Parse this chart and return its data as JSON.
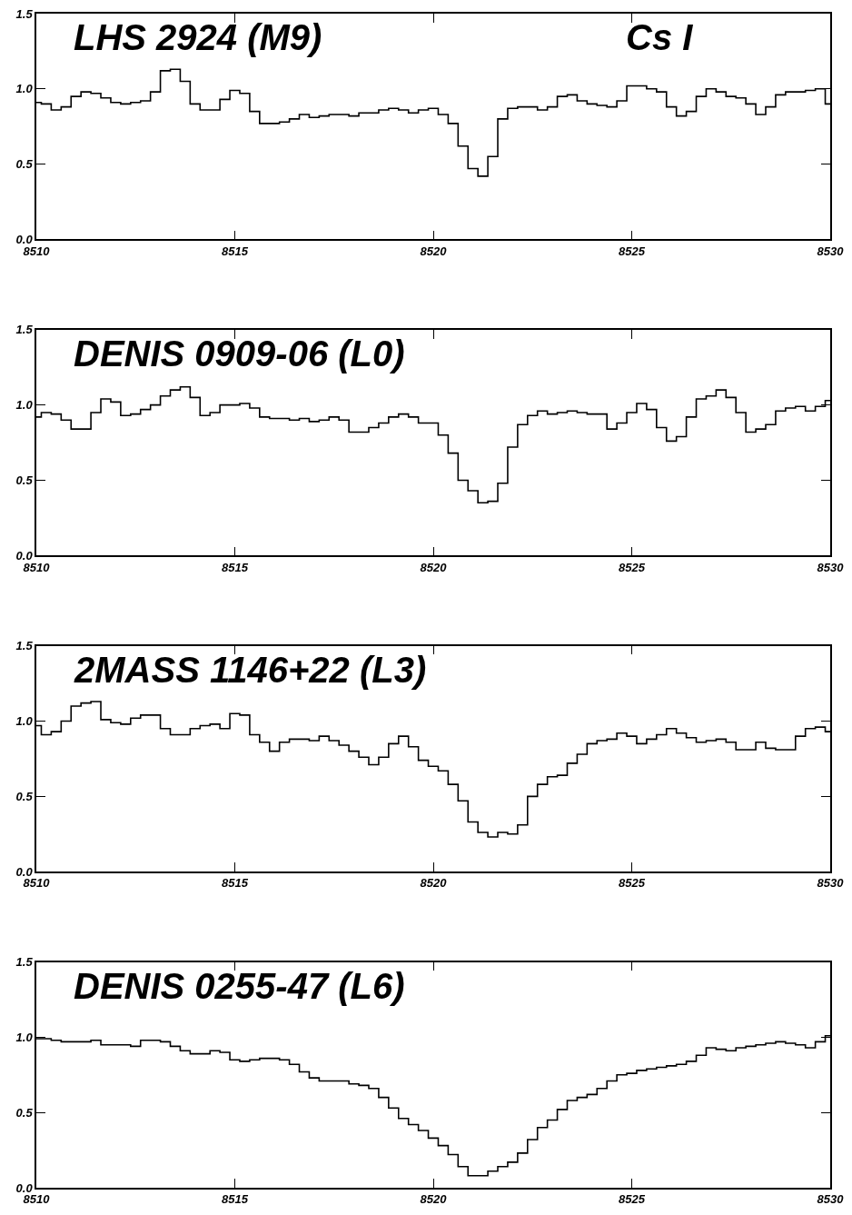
{
  "chart_data": [
    {
      "type": "step",
      "title": "LHS 2924 (M9)",
      "annotations": [
        "Cs I"
      ],
      "x": [
        8510,
        8510.25,
        8510.5,
        8510.75,
        8511,
        8511.25,
        8511.5,
        8511.75,
        8512,
        8512.25,
        8512.5,
        8512.75,
        8513,
        8513.25,
        8513.5,
        8513.75,
        8514,
        8514.25,
        8514.5,
        8514.75,
        8515,
        8515.25,
        8515.5,
        8515.75,
        8516,
        8516.25,
        8516.5,
        8516.75,
        8517,
        8517.25,
        8517.5,
        8517.75,
        8518,
        8518.25,
        8518.5,
        8518.75,
        8519,
        8519.25,
        8519.5,
        8519.75,
        8520,
        8520.25,
        8520.5,
        8520.75,
        8521,
        8521.25,
        8521.5,
        8521.75,
        8522,
        8522.25,
        8522.5,
        8522.75,
        8523,
        8523.25,
        8523.5,
        8523.75,
        8524,
        8524.25,
        8524.5,
        8524.75,
        8525,
        8525.25,
        8525.5,
        8525.75,
        8526,
        8526.25,
        8526.5,
        8526.75,
        8527,
        8527.25,
        8527.5,
        8527.75,
        8528,
        8528.25,
        8528.5,
        8528.75,
        8529,
        8529.25,
        8529.5,
        8529.75,
        8530
      ],
      "series": [
        {
          "color": "#000000",
          "values": [
            0.91,
            0.9,
            0.86,
            0.88,
            0.95,
            0.98,
            0.97,
            0.94,
            0.91,
            0.9,
            0.91,
            0.92,
            0.98,
            1.12,
            1.13,
            1.05,
            0.9,
            0.86,
            0.86,
            0.93,
            0.99,
            0.97,
            0.85,
            0.77,
            0.77,
            0.78,
            0.8,
            0.83,
            0.81,
            0.82,
            0.83,
            0.83,
            0.82,
            0.84,
            0.84,
            0.86,
            0.87,
            0.86,
            0.84,
            0.86,
            0.87,
            0.83,
            0.77,
            0.62,
            0.47,
            0.42,
            0.55,
            0.8,
            0.87,
            0.88,
            0.88,
            0.86,
            0.88,
            0.95,
            0.96,
            0.92,
            0.9,
            0.89,
            0.88,
            0.92,
            1.02,
            1.02,
            1.0,
            0.98,
            0.88,
            0.82,
            0.85,
            0.95,
            1.0,
            0.98,
            0.95,
            0.94,
            0.9,
            0.83,
            0.88,
            0.96,
            0.98,
            0.98,
            0.99,
            1.0,
            0.9
          ]
        }
      ],
      "xlim": [
        8510,
        8530
      ],
      "ylim": [
        0,
        1.5
      ],
      "xticks": [
        8510,
        8515,
        8520,
        8525,
        8530
      ],
      "yticks": [
        {
          "value": 0,
          "label": "0.0"
        },
        {
          "value": 0.5,
          "label": "0.5"
        },
        {
          "value": 1,
          "label": "1.0"
        },
        {
          "value": 1.5,
          "label": "1.5"
        }
      ],
      "tick_labels": "xy"
    },
    {
      "type": "step",
      "title": "DENIS 0909-06 (L0)",
      "x": [
        8510,
        8510.25,
        8510.5,
        8510.75,
        8511,
        8511.25,
        8511.5,
        8511.75,
        8512,
        8512.25,
        8512.5,
        8512.75,
        8513,
        8513.25,
        8513.5,
        8513.75,
        8514,
        8514.25,
        8514.5,
        8514.75,
        8515,
        8515.25,
        8515.5,
        8515.75,
        8516,
        8516.25,
        8516.5,
        8516.75,
        8517,
        8517.25,
        8517.5,
        8517.75,
        8518,
        8518.25,
        8518.5,
        8518.75,
        8519,
        8519.25,
        8519.5,
        8519.75,
        8520,
        8520.25,
        8520.5,
        8520.75,
        8521,
        8521.25,
        8521.5,
        8521.75,
        8522,
        8522.25,
        8522.5,
        8522.75,
        8523,
        8523.25,
        8523.5,
        8523.75,
        8524,
        8524.25,
        8524.5,
        8524.75,
        8525,
        8525.25,
        8525.5,
        8525.75,
        8526,
        8526.25,
        8526.5,
        8526.75,
        8527,
        8527.25,
        8527.5,
        8527.75,
        8528,
        8528.25,
        8528.5,
        8528.75,
        8529,
        8529.25,
        8529.5,
        8529.75,
        8530
      ],
      "series": [
        {
          "color": "#000000",
          "values": [
            0.92,
            0.95,
            0.94,
            0.9,
            0.84,
            0.84,
            0.95,
            1.04,
            1.02,
            0.93,
            0.94,
            0.97,
            1.0,
            1.06,
            1.1,
            1.12,
            1.05,
            0.93,
            0.95,
            1.0,
            1.0,
            1.01,
            0.98,
            0.92,
            0.91,
            0.91,
            0.9,
            0.91,
            0.89,
            0.9,
            0.92,
            0.9,
            0.82,
            0.82,
            0.85,
            0.88,
            0.92,
            0.94,
            0.92,
            0.88,
            0.88,
            0.8,
            0.68,
            0.5,
            0.43,
            0.35,
            0.36,
            0.48,
            0.72,
            0.87,
            0.93,
            0.96,
            0.94,
            0.95,
            0.96,
            0.95,
            0.94,
            0.94,
            0.84,
            0.88,
            0.95,
            1.01,
            0.97,
            0.85,
            0.76,
            0.79,
            0.92,
            1.04,
            1.06,
            1.1,
            1.05,
            0.95,
            0.82,
            0.84,
            0.87,
            0.96,
            0.98,
            0.99,
            0.96,
            0.99,
            1.03
          ]
        }
      ],
      "xlim": [
        8510,
        8530
      ],
      "ylim": [
        0,
        1.5
      ],
      "xticks": [
        8510,
        8515,
        8520,
        8525,
        8530
      ],
      "yticks": [
        {
          "value": 0,
          "label": "0.0"
        },
        {
          "value": 0.5,
          "label": "0.5"
        },
        {
          "value": 1,
          "label": "1.0"
        },
        {
          "value": 1.5,
          "label": "1.5"
        }
      ],
      "tick_labels": "xy"
    },
    {
      "type": "step",
      "title": "2MASS 1146+22 (L3)",
      "x": [
        8510,
        8510.25,
        8510.5,
        8510.75,
        8511,
        8511.25,
        8511.5,
        8511.75,
        8512,
        8512.25,
        8512.5,
        8512.75,
        8513,
        8513.25,
        8513.5,
        8513.75,
        8514,
        8514.25,
        8514.5,
        8514.75,
        8515,
        8515.25,
        8515.5,
        8515.75,
        8516,
        8516.25,
        8516.5,
        8516.75,
        8517,
        8517.25,
        8517.5,
        8517.75,
        8518,
        8518.25,
        8518.5,
        8518.75,
        8519,
        8519.25,
        8519.5,
        8519.75,
        8520,
        8520.25,
        8520.5,
        8520.75,
        8521,
        8521.25,
        8521.5,
        8521.75,
        8522,
        8522.25,
        8522.5,
        8522.75,
        8523,
        8523.25,
        8523.5,
        8523.75,
        8524,
        8524.25,
        8524.5,
        8524.75,
        8525,
        8525.25,
        8525.5,
        8525.75,
        8526,
        8526.25,
        8526.5,
        8526.75,
        8527,
        8527.25,
        8527.5,
        8527.75,
        8528,
        8528.25,
        8528.5,
        8528.75,
        8529,
        8529.25,
        8529.5,
        8529.75,
        8530
      ],
      "series": [
        {
          "color": "#000000",
          "values": [
            0.97,
            0.91,
            0.93,
            1.0,
            1.1,
            1.12,
            1.13,
            1.01,
            0.99,
            0.98,
            1.02,
            1.04,
            1.04,
            0.95,
            0.91,
            0.91,
            0.95,
            0.97,
            0.98,
            0.95,
            1.05,
            1.04,
            0.91,
            0.86,
            0.8,
            0.86,
            0.88,
            0.88,
            0.87,
            0.9,
            0.87,
            0.84,
            0.8,
            0.76,
            0.71,
            0.76,
            0.85,
            0.9,
            0.83,
            0.74,
            0.7,
            0.67,
            0.58,
            0.47,
            0.33,
            0.26,
            0.23,
            0.26,
            0.25,
            0.31,
            0.5,
            0.58,
            0.63,
            0.64,
            0.72,
            0.78,
            0.85,
            0.87,
            0.88,
            0.92,
            0.9,
            0.85,
            0.88,
            0.91,
            0.95,
            0.92,
            0.89,
            0.86,
            0.87,
            0.88,
            0.86,
            0.81,
            0.81,
            0.86,
            0.82,
            0.81,
            0.81,
            0.9,
            0.95,
            0.96,
            0.93
          ]
        }
      ],
      "xlim": [
        8510,
        8530
      ],
      "ylim": [
        0,
        1.5
      ],
      "xticks": [
        8510,
        8515,
        8520,
        8525,
        8530
      ],
      "yticks": [
        {
          "value": 0,
          "label": "0.0"
        },
        {
          "value": 0.5,
          "label": "0.5"
        },
        {
          "value": 1,
          "label": "1.0"
        },
        {
          "value": 1.5,
          "label": "1.5"
        }
      ],
      "tick_labels": "xy"
    },
    {
      "type": "step",
      "title": "DENIS 0255-47 (L6)",
      "x": [
        8510,
        8510.25,
        8510.5,
        8510.75,
        8511,
        8511.25,
        8511.5,
        8511.75,
        8512,
        8512.25,
        8512.5,
        8512.75,
        8513,
        8513.25,
        8513.5,
        8513.75,
        8514,
        8514.25,
        8514.5,
        8514.75,
        8515,
        8515.25,
        8515.5,
        8515.75,
        8516,
        8516.25,
        8516.5,
        8516.75,
        8517,
        8517.25,
        8517.5,
        8517.75,
        8518,
        8518.25,
        8518.5,
        8518.75,
        8519,
        8519.25,
        8519.5,
        8519.75,
        8520,
        8520.25,
        8520.5,
        8520.75,
        8521,
        8521.25,
        8521.5,
        8521.75,
        8522,
        8522.25,
        8522.5,
        8522.75,
        8523,
        8523.25,
        8523.5,
        8523.75,
        8524,
        8524.25,
        8524.5,
        8524.75,
        8525,
        8525.25,
        8525.5,
        8525.75,
        8526,
        8526.25,
        8526.5,
        8526.75,
        8527,
        8527.25,
        8527.5,
        8527.75,
        8528,
        8528.25,
        8528.5,
        8528.75,
        8529,
        8529.25,
        8529.5,
        8529.75,
        8530
      ],
      "series": [
        {
          "color": "#000000",
          "values": [
            0.99,
            0.99,
            0.98,
            0.97,
            0.97,
            0.97,
            0.98,
            0.95,
            0.95,
            0.95,
            0.94,
            0.98,
            0.98,
            0.97,
            0.94,
            0.91,
            0.89,
            0.89,
            0.91,
            0.9,
            0.85,
            0.84,
            0.85,
            0.86,
            0.86,
            0.85,
            0.82,
            0.77,
            0.73,
            0.71,
            0.71,
            0.71,
            0.69,
            0.68,
            0.66,
            0.6,
            0.53,
            0.46,
            0.42,
            0.38,
            0.33,
            0.28,
            0.22,
            0.14,
            0.08,
            0.08,
            0.11,
            0.14,
            0.17,
            0.23,
            0.32,
            0.4,
            0.45,
            0.52,
            0.58,
            0.6,
            0.62,
            0.66,
            0.71,
            0.75,
            0.76,
            0.78,
            0.79,
            0.8,
            0.81,
            0.82,
            0.84,
            0.88,
            0.93,
            0.92,
            0.91,
            0.93,
            0.94,
            0.95,
            0.96,
            0.97,
            0.96,
            0.95,
            0.93,
            0.97,
            1.01
          ]
        }
      ],
      "xlim": [
        8510,
        8530
      ],
      "ylim": [
        0,
        1.5
      ],
      "xticks": [
        8510,
        8515,
        8520,
        8525,
        8530
      ],
      "yticks": [
        {
          "value": 0,
          "label": "0.0"
        },
        {
          "value": 0.5,
          "label": "0.5"
        },
        {
          "value": 1,
          "label": "1.0"
        },
        {
          "value": 1.5,
          "label": "1.5"
        }
      ],
      "tick_labels": "xy"
    }
  ]
}
